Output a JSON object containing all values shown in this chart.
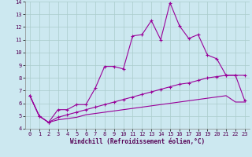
{
  "xlabel": "Windchill (Refroidissement éolien,°C)",
  "x_values": [
    0,
    1,
    2,
    3,
    4,
    5,
    6,
    7,
    8,
    9,
    10,
    11,
    12,
    13,
    14,
    15,
    16,
    17,
    18,
    19,
    20,
    21,
    22,
    23
  ],
  "line1_y": [
    6.6,
    5.0,
    4.5,
    5.5,
    5.5,
    5.9,
    5.9,
    7.2,
    8.9,
    8.9,
    8.7,
    11.3,
    11.4,
    12.5,
    11.0,
    13.9,
    12.1,
    11.1,
    11.4,
    9.8,
    9.5,
    8.2,
    8.2,
    8.2
  ],
  "line2_y": [
    6.6,
    5.0,
    4.5,
    4.9,
    5.1,
    5.3,
    5.5,
    5.7,
    5.9,
    6.1,
    6.3,
    6.5,
    6.7,
    6.9,
    7.1,
    7.3,
    7.5,
    7.6,
    7.8,
    8.0,
    8.1,
    8.2,
    8.2,
    6.2
  ],
  "line3_y": [
    6.6,
    5.0,
    4.5,
    4.7,
    4.8,
    4.9,
    5.1,
    5.2,
    5.3,
    5.4,
    5.5,
    5.6,
    5.7,
    5.8,
    5.9,
    6.0,
    6.1,
    6.2,
    6.3,
    6.4,
    6.5,
    6.6,
    6.1,
    6.1
  ],
  "line_color": "#990099",
  "bg_color": "#cce8f0",
  "grid_color": "#aacccc",
  "ylim": [
    4,
    14
  ],
  "xlim": [
    -0.5,
    23.5
  ],
  "yticks": [
    4,
    5,
    6,
    7,
    8,
    9,
    10,
    11,
    12,
    13,
    14
  ],
  "xticks": [
    0,
    1,
    2,
    3,
    4,
    5,
    6,
    7,
    8,
    9,
    10,
    11,
    12,
    13,
    14,
    15,
    16,
    17,
    18,
    19,
    20,
    21,
    22,
    23
  ]
}
